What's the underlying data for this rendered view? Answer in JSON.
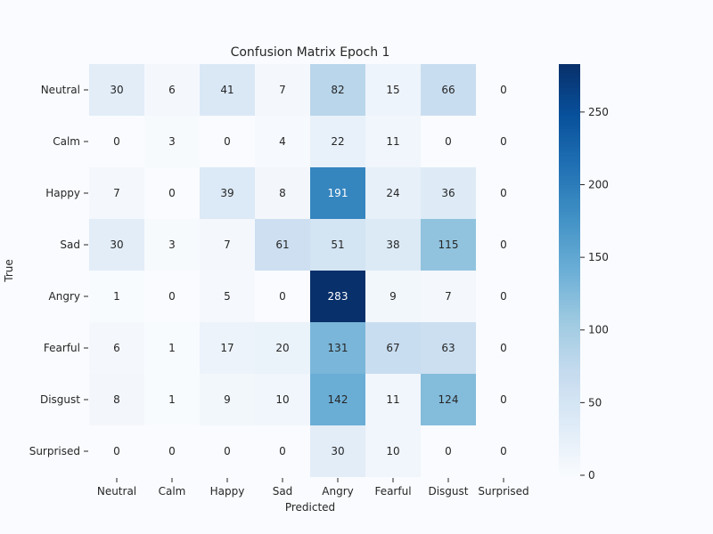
{
  "chart_data": {
    "type": "heatmap",
    "title": "Confusion Matrix Epoch 1",
    "xlabel": "Predicted",
    "ylabel": "True",
    "x_categories": [
      "Neutral",
      "Calm",
      "Happy",
      "Sad",
      "Angry",
      "Fearful",
      "Disgust",
      "Surprised"
    ],
    "y_categories": [
      "Neutral",
      "Calm",
      "Happy",
      "Sad",
      "Angry",
      "Fearful",
      "Disgust",
      "Surprised"
    ],
    "values": [
      [
        30,
        6,
        41,
        7,
        82,
        15,
        66,
        0
      ],
      [
        0,
        3,
        0,
        4,
        22,
        11,
        0,
        0
      ],
      [
        7,
        0,
        39,
        8,
        191,
        24,
        36,
        0
      ],
      [
        30,
        3,
        7,
        61,
        51,
        38,
        115,
        0
      ],
      [
        1,
        0,
        5,
        0,
        283,
        9,
        7,
        0
      ],
      [
        6,
        1,
        17,
        20,
        131,
        67,
        63,
        0
      ],
      [
        8,
        1,
        9,
        10,
        142,
        11,
        124,
        0
      ],
      [
        0,
        0,
        0,
        0,
        30,
        10,
        0,
        0
      ]
    ],
    "colorbar": {
      "min": 0,
      "max": 283,
      "ticks": [
        0,
        50,
        100,
        150,
        200,
        250
      ],
      "palette": [
        "#f9fbfe",
        "#deebf7",
        "#c6dbef",
        "#9ecae1",
        "#6baed6",
        "#4292c6",
        "#2171b5",
        "#08519c",
        "#08306b"
      ]
    },
    "grid": false,
    "legend": "colorbar-right"
  }
}
